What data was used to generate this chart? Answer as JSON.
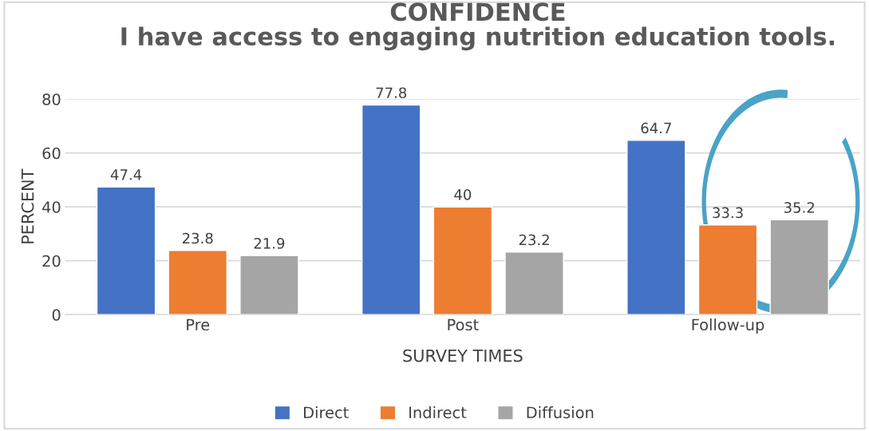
{
  "chart_data": {
    "type": "bar",
    "title": "CONFIDENCE\nI have access to engaging nutrition education tools.",
    "xlabel": "SURVEY TIMES",
    "ylabel": "PERCENT",
    "categories": [
      "Pre",
      "Post",
      "Follow-up"
    ],
    "series": [
      {
        "name": "Direct",
        "color": "#4472c4",
        "values": [
          47.4,
          77.8,
          64.7
        ]
      },
      {
        "name": "Indirect",
        "color": "#ed7d31",
        "values": [
          23.8,
          40,
          33.3
        ]
      },
      {
        "name": "Diffusion",
        "color": "#a5a5a5",
        "values": [
          21.9,
          23.2,
          35.2
        ]
      }
    ],
    "ylim": [
      0,
      80
    ],
    "yticks": [
      0,
      20,
      40,
      60,
      80
    ],
    "grid": "y",
    "legend": "bottom",
    "data_labels": true
  }
}
